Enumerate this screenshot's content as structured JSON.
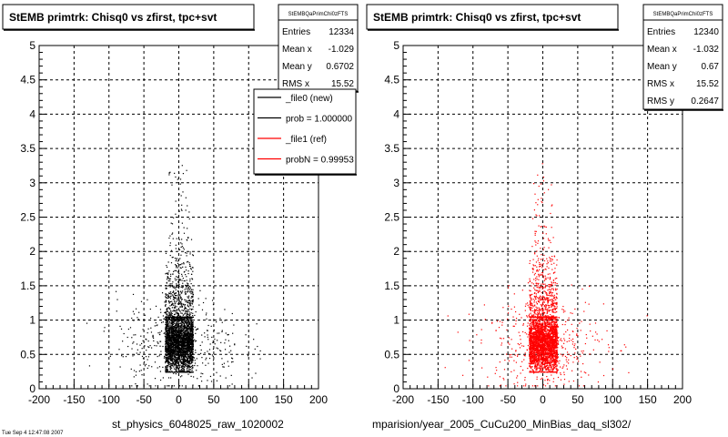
{
  "chart_data": [
    {
      "type": "scatter",
      "title": "StEMB primtrk: Chisq0 vs zfirst, tpc+svt",
      "xlabel": "st_physics_6048025_raw_1020002",
      "ylabel": "",
      "xlim": [
        -200,
        200
      ],
      "ylim": [
        0,
        5
      ],
      "x_ticks": [
        "-200",
        "-150",
        "-100",
        "-50",
        "0",
        "50",
        "100",
        "150",
        "200"
      ],
      "y_ticks": [
        "0",
        "0.5",
        "1",
        "1.5",
        "2",
        "2.5",
        "3",
        "3.5",
        "4",
        "4.5",
        "5"
      ],
      "grid": true,
      "point_color": "#000000",
      "stats": {
        "name": "StEMBQaPrimChi0zFTS",
        "rows": [
          {
            "label": "Entries",
            "value": "12334"
          },
          {
            "label": "Mean x",
            "value": "-1.029"
          },
          {
            "label": "Mean y",
            "value": "0.6702"
          },
          {
            "label": "RMS x",
            "value": "15.52"
          }
        ]
      },
      "legend": {
        "position": "top-right",
        "entries": [
          {
            "label": "_file0 (new)",
            "color": "#000000"
          },
          {
            "label": "prob = 1.000000",
            "color": "#000000"
          },
          {
            "label": "_file1 (ref)",
            "color": "#ff0000"
          },
          {
            "label": "probN = 0.99953",
            "color": "#ff0000"
          }
        ]
      },
      "distribution": {
        "core_x": [
          -20,
          20
        ],
        "core_y": [
          0.25,
          1.05
        ],
        "x_mean": -1.029,
        "y_mean": 0.6702
      }
    },
    {
      "type": "scatter",
      "title": "StEMB primtrk: Chisq0 vs zfirst, tpc+svt",
      "xlabel": "mparision/year_2005_CuCu200_MinBias_daq_sl302/",
      "ylabel": "",
      "xlim": [
        -200,
        200
      ],
      "ylim": [
        0,
        5
      ],
      "x_ticks": [
        "-200",
        "-150",
        "-100",
        "-50",
        "0",
        "50",
        "100",
        "150",
        "200"
      ],
      "y_ticks": [
        "0",
        "0.5",
        "1",
        "1.5",
        "2",
        "2.5",
        "3",
        "3.5",
        "4",
        "4.5",
        "5"
      ],
      "grid": true,
      "point_color": "#ff0000",
      "stats": {
        "name": "StEMBQaPrimChi0zFTS",
        "rows": [
          {
            "label": "Entries",
            "value": "12340"
          },
          {
            "label": "Mean x",
            "value": "-1.032"
          },
          {
            "label": "Mean y",
            "value": "0.67"
          },
          {
            "label": "RMS x",
            "value": "15.52"
          },
          {
            "label": "RMS y",
            "value": "0.2647"
          }
        ]
      },
      "distribution": {
        "core_x": [
          -20,
          20
        ],
        "core_y": [
          0.25,
          1.05
        ],
        "x_mean": -1.032,
        "y_mean": 0.67
      }
    }
  ],
  "footer_text": "Tue Sep 4 12:47:08 2007"
}
